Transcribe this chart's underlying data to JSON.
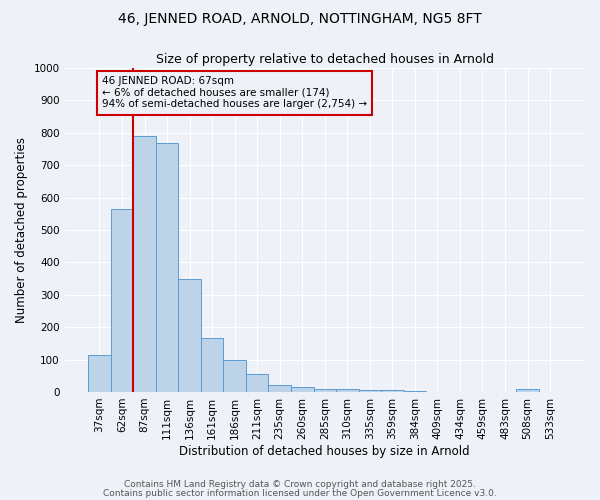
{
  "title1": "46, JENNED ROAD, ARNOLD, NOTTINGHAM, NG5 8FT",
  "title2": "Size of property relative to detached houses in Arnold",
  "xlabel": "Distribution of detached houses by size in Arnold",
  "ylabel": "Number of detached properties",
  "categories": [
    "37sqm",
    "62sqm",
    "87sqm",
    "111sqm",
    "136sqm",
    "161sqm",
    "186sqm",
    "211sqm",
    "235sqm",
    "260sqm",
    "285sqm",
    "310sqm",
    "335sqm",
    "359sqm",
    "384sqm",
    "409sqm",
    "434sqm",
    "459sqm",
    "483sqm",
    "508sqm",
    "533sqm"
  ],
  "values": [
    115,
    565,
    790,
    770,
    350,
    168,
    100,
    55,
    20,
    14,
    10,
    8,
    7,
    5,
    2,
    0,
    1,
    0,
    0,
    8,
    0
  ],
  "bar_color": "#bdd4e8",
  "bar_edge_color": "#5b9bd5",
  "bg_color": "#eef2f8",
  "grid_color": "#ffffff",
  "annotation_line1": "46 JENNED ROAD: 67sqm",
  "annotation_line2": "← 6% of detached houses are smaller (174)",
  "annotation_line3": "94% of semi-detached houses are larger (2,754) →",
  "annotation_box_color": "#cc0000",
  "vline_color": "#cc0000",
  "ylim": [
    0,
    1000
  ],
  "yticks": [
    0,
    100,
    200,
    300,
    400,
    500,
    600,
    700,
    800,
    900,
    1000
  ],
  "footer1": "Contains HM Land Registry data © Crown copyright and database right 2025.",
  "footer2": "Contains public sector information licensed under the Open Government Licence v3.0.",
  "title1_fontsize": 10,
  "title2_fontsize": 9,
  "xlabel_fontsize": 8.5,
  "ylabel_fontsize": 8.5,
  "tick_fontsize": 7.5,
  "annotation_fontsize": 7.5,
  "footer_fontsize": 6.5
}
